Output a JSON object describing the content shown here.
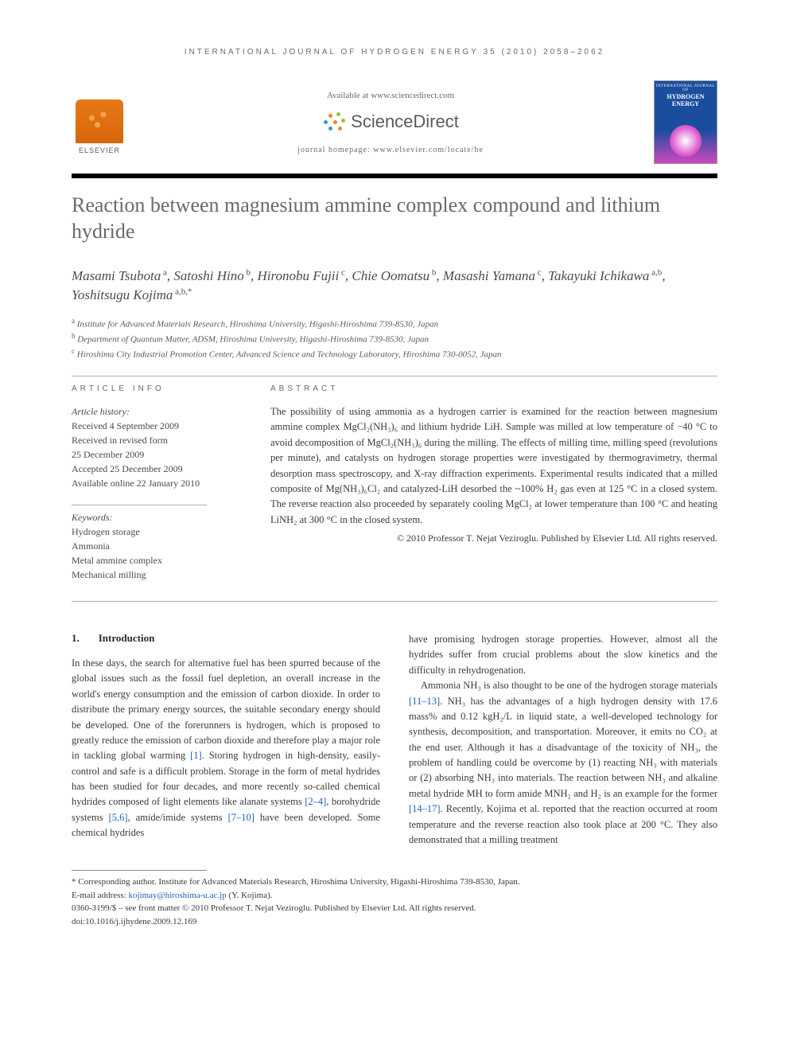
{
  "running_head": "INTERNATIONAL JOURNAL OF HYDROGEN ENERGY 35 (2010) 2058–2062",
  "masthead": {
    "elsevier": "ELSEVIER",
    "available_at": "Available at www.sciencedirect.com",
    "sd_name": "ScienceDirect",
    "homepage": "journal homepage: www.elsevier.com/locate/he",
    "cover_top": "INTERNATIONAL JOURNAL OF",
    "cover_title": "HYDROGEN\nENERGY",
    "sd_dot_colors": [
      "#f58220",
      "#8cc63f",
      "#2e9bd6",
      "#f58220",
      "#8cc63f",
      "#2e9bd6",
      "#f58220"
    ]
  },
  "title": "Reaction between magnesium ammine complex compound and lithium hydride",
  "authors_html": "Masami Tsubota<sup> a</sup>, Satoshi Hino<sup> b</sup>, Hironobu Fujii<sup> c</sup>, Chie Oomatsu<sup> b</sup>, Masashi Yamana<sup> c</sup>, Takayuki Ichikawa<sup> a,b</sup>, Yoshitsugu Kojima<sup> a,b,*</sup>",
  "affiliations": [
    {
      "sup": "a",
      "text": "Institute for Advanced Materials Research, Hiroshima University, Higashi-Hiroshima 739-8530, Japan"
    },
    {
      "sup": "b",
      "text": "Department of Quantum Matter, ADSM, Hiroshima University, Higashi-Hiroshima 739-8530, Japan"
    },
    {
      "sup": "c",
      "text": "Hiroshima City Industrial Promotion Center, Advanced Science and Technology Laboratory, Hiroshima 730-0052, Japan"
    }
  ],
  "labels": {
    "article_info": "ARTICLE INFO",
    "abstract": "ABSTRACT"
  },
  "history": {
    "heading": "Article history:",
    "lines": [
      "Received 4 September 2009",
      "Received in revised form",
      "25 December 2009",
      "Accepted 25 December 2009",
      "Available online 22 January 2010"
    ]
  },
  "keywords": {
    "heading": "Keywords:",
    "items": [
      "Hydrogen storage",
      "Ammonia",
      "Metal ammine complex",
      "Mechanical milling"
    ]
  },
  "abstract": "The possibility of using ammonia as a hydrogen carrier is examined for the reaction between magnesium ammine complex MgCl₂(NH₃)₆ and lithium hydride LiH. Sample was milled at low temperature of −40 °C to avoid decomposition of MgCl₂(NH₃)₆ during the milling. The effects of milling time, milling speed (revolutions per minute), and catalysts on hydrogen storage properties were investigated by thermogravimetry, thermal desorption mass spectroscopy, and X-ray diffraction experiments. Experimental results indicated that a milled composite of Mg(NH₃)₆Cl₂ and catalyzed-LiH desorbed the ~100% H₂ gas even at 125 °C in a closed system. The reverse reaction also proceeded by separately cooling MgCl₂ at lower temperature than 100 °C and heating LiNH₂ at 300 °C in the closed system.",
  "abstract_copyright": "© 2010 Professor T. Nejat Veziroglu. Published by Elsevier Ltd. All rights reserved.",
  "section1": {
    "num": "1.",
    "title": "Introduction"
  },
  "col1_para": "In these days, the search for alternative fuel has been spurred because of the global issues such as the fossil fuel depletion, an overall increase in the world's energy consumption and the emission of carbon dioxide. In order to distribute the primary energy sources, the suitable secondary energy should be developed. One of the forerunners is hydrogen, which is proposed to greatly reduce the emission of carbon dioxide and therefore play a major role in tackling global warming <span class=\"ref-link\">[1]</span>. Storing hydrogen in high-density, easily-control and safe is a difficult problem. Storage in the form of metal hydrides has been studied for four decades, and more recently so-called chemical hydrides composed of light elements like alanate systems <span class=\"ref-link\">[2–4]</span>, borohydride systems <span class=\"ref-link\">[5,6]</span>, amide/imide systems <span class=\"ref-link\">[7–10]</span> have been developed. Some chemical hydrides",
  "col2_para1": "have promising hydrogen storage properties. However, almost all the hydrides suffer from crucial problems about the slow kinetics and the difficulty in rehydrogenation.",
  "col2_para2": "Ammonia NH₃ is also thought to be one of the hydrogen storage materials <span class=\"ref-link\">[11–13]</span>. NH₃ has the advantages of a high hydrogen density with 17.6 mass% and 0.12 kgH₂/L in liquid state, a well-developed technology for synthesis, decomposition, and transportation. Moreover, it emits no CO₂ at the end user. Although it has a disadvantage of the toxicity of NH₃, the problem of handling could be overcome by (1) reacting NH₃ with materials or (2) absorbing NH₃ into materials. The reaction between NH₃ and alkaline metal hydride MH to form amide MNH₂ and H₂ is an example for the former <span class=\"ref-link\">[14–17]</span>. Recently, Kojima et al. reported that the reaction occurred at room temperature and the reverse reaction also took place at 200 °C. They also demonstrated that a milling treatment",
  "footnote": {
    "corr": "* Corresponding author. Institute for Advanced Materials Research, Hiroshima University, Higashi-Hiroshima 739-8530, Japan.",
    "email_label": "E-mail address: ",
    "email": "kojimay@hiroshima-u.ac.jp",
    "email_tail": " (Y. Kojima).",
    "issn": "0360-3199/$ – see front matter © 2010 Professor T. Nejat Veziroglu. Published by Elsevier Ltd. All rights reserved.",
    "doi": "doi:10.1016/j.ijhydene.2009.12.169"
  },
  "colors": {
    "text": "#3a3a3a",
    "muted": "#6a6a6a",
    "link": "#2060c0",
    "elsevier_orange": "#e67817",
    "cover_blue": "#1a4d9e",
    "cover_pink": "#d048c0",
    "rule": "#b0b0b0"
  },
  "typography": {
    "body_pt": 12.5,
    "title_pt": 26,
    "authors_pt": 17,
    "affil_pt": 11,
    "label_pt": 10,
    "footnote_pt": 11
  }
}
